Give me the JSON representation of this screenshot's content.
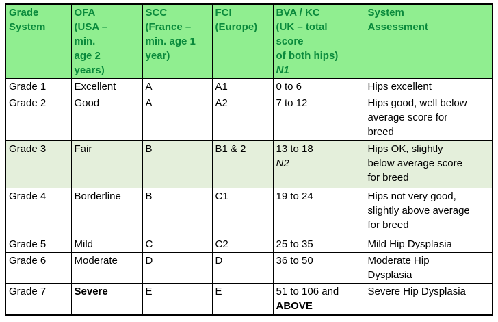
{
  "colors": {
    "header_bg": "#90EE90",
    "header_text": "#0A8A3C",
    "highlight_row_bg": "#E4EFDB",
    "body_text": "#000000",
    "border": "#000000",
    "page_bg": "#FFFFFF"
  },
  "table": {
    "header": {
      "cells": [
        {
          "id": "grade-system",
          "lines": [
            {
              "text": "Grade"
            },
            {
              "text": "System"
            }
          ]
        },
        {
          "id": "ofa",
          "lines": [
            {
              "text": "OFA"
            },
            {
              "text": "(USA –"
            },
            {
              "text": "min."
            },
            {
              "text": "age 2"
            },
            {
              "text": "years)"
            }
          ]
        },
        {
          "id": "scc",
          "lines": [
            {
              "text": "SCC"
            },
            {
              "text": "(France –"
            },
            {
              "text": "min. age 1"
            },
            {
              "text": "year)"
            }
          ]
        },
        {
          "id": "fci",
          "lines": [
            {
              "text": "FCI"
            },
            {
              "text": "(Europe)"
            }
          ]
        },
        {
          "id": "bva-kc",
          "lines": [
            {
              "text": "BVA / KC"
            },
            {
              "text": "(UK – total"
            },
            {
              "text": "score"
            },
            {
              "text": "of both hips)"
            },
            {
              "text": "N1",
              "italic": true
            }
          ]
        },
        {
          "id": "system-assessment",
          "lines": [
            {
              "text": "System"
            },
            {
              "text": "Assessment"
            }
          ]
        }
      ]
    },
    "rows": [
      {
        "highlight": false,
        "cells": [
          {
            "lines": [
              {
                "text": "Grade 1"
              }
            ]
          },
          {
            "lines": [
              {
                "text": "Excellent"
              }
            ]
          },
          {
            "lines": [
              {
                "text": "A"
              }
            ]
          },
          {
            "lines": [
              {
                "text": "A1"
              }
            ]
          },
          {
            "lines": [
              {
                "text": "0 to 6"
              }
            ]
          },
          {
            "lines": [
              {
                "text": "Hips excellent"
              }
            ]
          }
        ]
      },
      {
        "highlight": false,
        "cells": [
          {
            "lines": [
              {
                "text": "Grade 2"
              }
            ]
          },
          {
            "lines": [
              {
                "text": "Good"
              }
            ]
          },
          {
            "lines": [
              {
                "text": "A"
              }
            ]
          },
          {
            "lines": [
              {
                "text": "A2"
              }
            ]
          },
          {
            "lines": [
              {
                "text": "7 to 12"
              }
            ]
          },
          {
            "lines": [
              {
                "text": "Hips good, well below"
              },
              {
                "text": "average score for"
              },
              {
                "text": "breed"
              }
            ]
          }
        ]
      },
      {
        "highlight": true,
        "cells": [
          {
            "lines": [
              {
                "text": "Grade 3"
              }
            ]
          },
          {
            "lines": [
              {
                "text": "Fair"
              }
            ]
          },
          {
            "lines": [
              {
                "text": "B"
              }
            ]
          },
          {
            "lines": [
              {
                "text": "B1 & 2"
              }
            ]
          },
          {
            "lines": [
              {
                "text": "13 to 18"
              },
              {
                "text": "N2",
                "italic": true
              }
            ]
          },
          {
            "lines": [
              {
                "text": "Hips OK, slightly"
              },
              {
                "text": "below average score"
              },
              {
                "text": "for breed"
              }
            ]
          }
        ]
      },
      {
        "highlight": false,
        "cells": [
          {
            "lines": [
              {
                "text": "Grade 4"
              }
            ]
          },
          {
            "lines": [
              {
                "text": "Borderline"
              }
            ]
          },
          {
            "lines": [
              {
                "text": "B"
              }
            ]
          },
          {
            "lines": [
              {
                "text": "C1"
              }
            ]
          },
          {
            "lines": [
              {
                "text": "19 to 24"
              }
            ]
          },
          {
            "lines": [
              {
                "text": "Hips not very good,"
              },
              {
                "text": "slightly above average"
              },
              {
                "text": "for breed"
              }
            ]
          }
        ]
      },
      {
        "highlight": false,
        "cells": [
          {
            "lines": [
              {
                "text": "Grade 5"
              }
            ]
          },
          {
            "lines": [
              {
                "text": "Mild"
              }
            ]
          },
          {
            "lines": [
              {
                "text": "C"
              }
            ]
          },
          {
            "lines": [
              {
                "text": "C2"
              }
            ]
          },
          {
            "lines": [
              {
                "text": "25 to 35"
              }
            ]
          },
          {
            "lines": [
              {
                "text": "Mild Hip Dysplasia"
              }
            ]
          }
        ]
      },
      {
        "highlight": false,
        "cells": [
          {
            "lines": [
              {
                "text": "Grade 6"
              }
            ]
          },
          {
            "lines": [
              {
                "text": "Moderate"
              }
            ]
          },
          {
            "lines": [
              {
                "text": "D"
              }
            ]
          },
          {
            "lines": [
              {
                "text": "D"
              }
            ]
          },
          {
            "lines": [
              {
                "text": "36 to 50"
              }
            ]
          },
          {
            "lines": [
              {
                "text": "Moderate Hip"
              },
              {
                "text": "Dysplasia"
              }
            ]
          }
        ]
      },
      {
        "highlight": false,
        "cells": [
          {
            "lines": [
              {
                "text": "Grade 7"
              }
            ]
          },
          {
            "lines": [
              {
                "text": "Severe",
                "bold": true
              }
            ]
          },
          {
            "lines": [
              {
                "text": "E"
              }
            ]
          },
          {
            "lines": [
              {
                "text": "E"
              }
            ]
          },
          {
            "lines": [
              {
                "text": "51 to 106 and"
              },
              {
                "text": "ABOVE",
                "bold": true
              }
            ]
          },
          {
            "lines": [
              {
                "text": "Severe Hip Dysplasia"
              }
            ]
          }
        ]
      }
    ]
  }
}
